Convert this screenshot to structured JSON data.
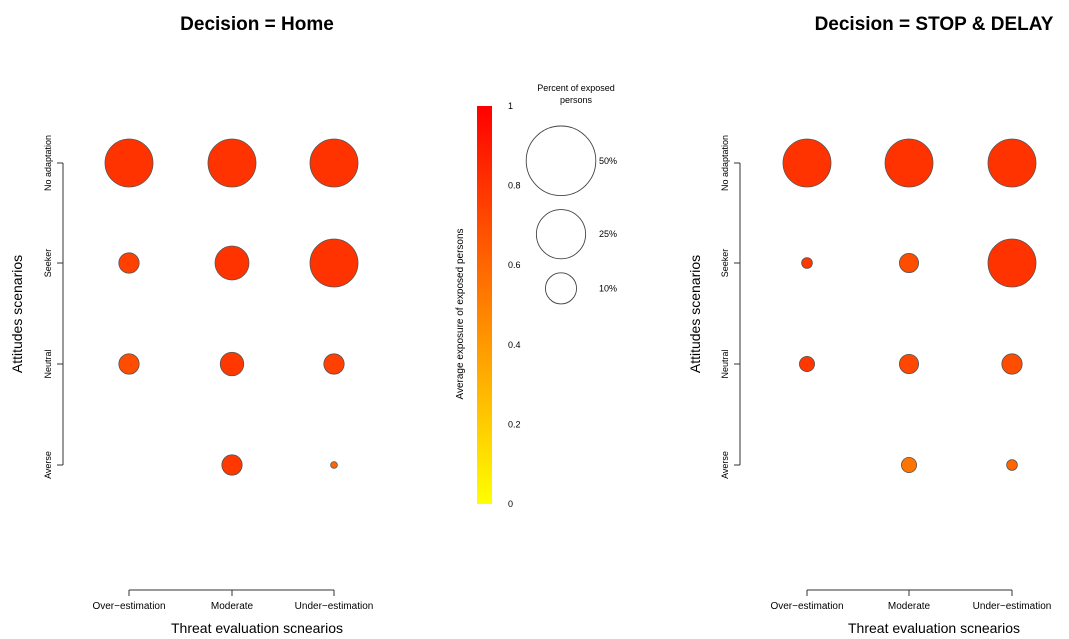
{
  "chart_data": [
    {
      "type": "scatter",
      "title": "Decision = Home",
      "xlabel": "Threat evaluation scnearios",
      "ylabel": "Attitudes scenarios",
      "x_categories": [
        "Over−estimation",
        "Moderate",
        "Under−estimation"
      ],
      "y_categories": [
        "Averse",
        "Neutral",
        "Seeker",
        "No adaptation"
      ],
      "points": [
        {
          "x": "Over−estimation",
          "y": "No adaptation",
          "percent_exposed": 50,
          "avg_exposure": 0.8
        },
        {
          "x": "Moderate",
          "y": "No adaptation",
          "percent_exposed": 50,
          "avg_exposure": 0.8
        },
        {
          "x": "Under−estimation",
          "y": "No adaptation",
          "percent_exposed": 50,
          "avg_exposure": 0.8
        },
        {
          "x": "Over−estimation",
          "y": "Seeker",
          "percent_exposed": 9,
          "avg_exposure": 0.75
        },
        {
          "x": "Moderate",
          "y": "Seeker",
          "percent_exposed": 25,
          "avg_exposure": 0.8
        },
        {
          "x": "Under−estimation",
          "y": "Seeker",
          "percent_exposed": 50,
          "avg_exposure": 0.8
        },
        {
          "x": "Over−estimation",
          "y": "Neutral",
          "percent_exposed": 9,
          "avg_exposure": 0.7
        },
        {
          "x": "Moderate",
          "y": "Neutral",
          "percent_exposed": 12,
          "avg_exposure": 0.78
        },
        {
          "x": "Under−estimation",
          "y": "Neutral",
          "percent_exposed": 9,
          "avg_exposure": 0.75
        },
        {
          "x": "Moderate",
          "y": "Averse",
          "percent_exposed": 9,
          "avg_exposure": 0.78
        },
        {
          "x": "Under−estimation",
          "y": "Averse",
          "percent_exposed": 1,
          "avg_exposure": 0.6
        }
      ]
    },
    {
      "type": "scatter",
      "title": "Decision = STOP & DELAY",
      "xlabel": "Threat evaluation scnearios",
      "ylabel": "Attitudes scenarios",
      "x_categories": [
        "Over−estimation",
        "Moderate",
        "Under−estimation"
      ],
      "y_categories": [
        "Averse",
        "Neutral",
        "Seeker",
        "No adaptation"
      ],
      "points": [
        {
          "x": "Over−estimation",
          "y": "No adaptation",
          "percent_exposed": 50,
          "avg_exposure": 0.8
        },
        {
          "x": "Moderate",
          "y": "No adaptation",
          "percent_exposed": 50,
          "avg_exposure": 0.8
        },
        {
          "x": "Under−estimation",
          "y": "No adaptation",
          "percent_exposed": 50,
          "avg_exposure": 0.8
        },
        {
          "x": "Over−estimation",
          "y": "Seeker",
          "percent_exposed": 2.5,
          "avg_exposure": 0.78
        },
        {
          "x": "Moderate",
          "y": "Seeker",
          "percent_exposed": 8,
          "avg_exposure": 0.7
        },
        {
          "x": "Under−estimation",
          "y": "Seeker",
          "percent_exposed": 50,
          "avg_exposure": 0.8
        },
        {
          "x": "Over−estimation",
          "y": "Neutral",
          "percent_exposed": 5,
          "avg_exposure": 0.78
        },
        {
          "x": "Moderate",
          "y": "Neutral",
          "percent_exposed": 8,
          "avg_exposure": 0.72
        },
        {
          "x": "Under−estimation",
          "y": "Neutral",
          "percent_exposed": 9,
          "avg_exposure": 0.7
        },
        {
          "x": "Moderate",
          "y": "Averse",
          "percent_exposed": 5,
          "avg_exposure": 0.55
        },
        {
          "x": "Under−estimation",
          "y": "Averse",
          "percent_exposed": 2.5,
          "avg_exposure": 0.6
        }
      ]
    }
  ],
  "colorbar": {
    "label": "Average exposure of exposed persons",
    "ticks": [
      "0",
      "0.2",
      "0.4",
      "0.6",
      "0.8",
      "1"
    ],
    "range": [
      0,
      1
    ],
    "colors": [
      "#ffff00",
      "#ff0000"
    ]
  },
  "size_legend": {
    "title_line1": "Percent of exposed",
    "title_line2": "persons",
    "entries": [
      {
        "label": "50%",
        "value": 50
      },
      {
        "label": "25%",
        "value": 25
      },
      {
        "label": "10%",
        "value": 10
      }
    ]
  }
}
